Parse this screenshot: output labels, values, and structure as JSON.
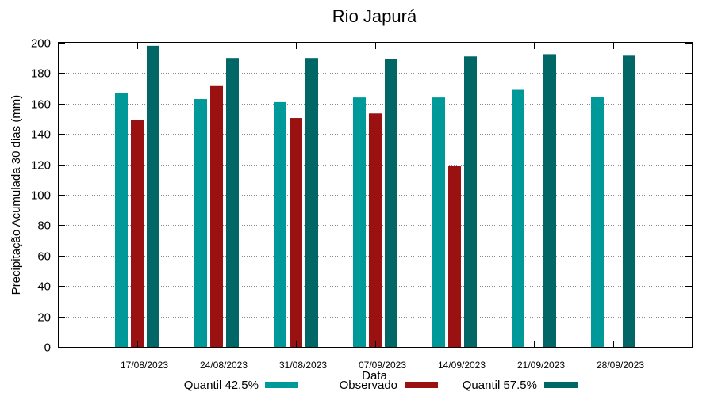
{
  "chart_data": {
    "type": "bar",
    "title": "Rio Japurá",
    "xlabel": "Data",
    "ylabel": "Precipitação Acumulada 30 dias (mm)",
    "ylim": [
      0,
      200
    ],
    "yticks": [
      0,
      20,
      40,
      60,
      80,
      100,
      120,
      140,
      160,
      180,
      200
    ],
    "grid": true,
    "legend_position": "bottom",
    "categories": [
      "17/08/2023",
      "24/08/2023",
      "31/08/2023",
      "07/09/2023",
      "14/09/2023",
      "21/09/2023",
      "28/09/2023"
    ],
    "series": [
      {
        "name": "Quantil 42.5%",
        "color": "#009999",
        "values": [
          167,
          163,
          161,
          164,
          164,
          169,
          164.5
        ]
      },
      {
        "name": "Observado",
        "color": "#991111",
        "values": [
          149,
          172,
          150.5,
          153.5,
          119,
          null,
          null
        ]
      },
      {
        "name": "Quantil 57.5%",
        "color": "#006666",
        "values": [
          198,
          190,
          190,
          189.5,
          191,
          192.5,
          191.5
        ]
      }
    ]
  }
}
